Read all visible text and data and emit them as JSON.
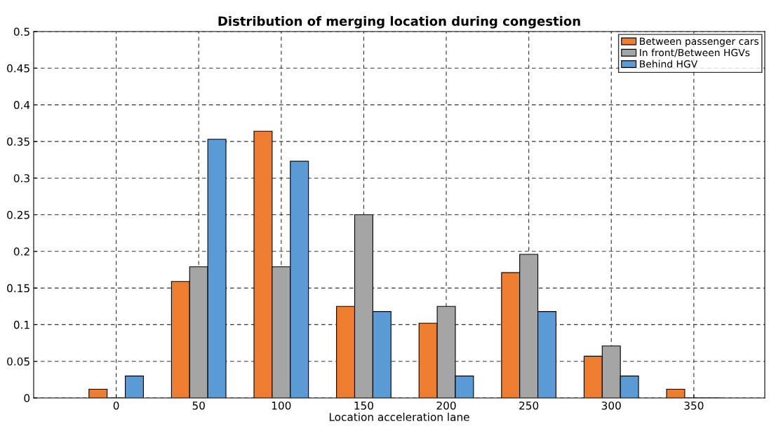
{
  "chart_data": {
    "type": "bar",
    "title": "Distribution of merging location during congestion",
    "xlabel": "Location acceleration lane",
    "x": [
      0,
      50,
      100,
      150,
      200,
      250,
      300,
      350
    ],
    "series": [
      {
        "name": "Between passenger cars",
        "color": "#ed7d31",
        "values": [
          0.012,
          0.159,
          0.364,
          0.125,
          0.102,
          0.171,
          0.057,
          0.012
        ]
      },
      {
        "name": "In front/Between HGVs",
        "color": "#a5a5a5",
        "values": [
          0,
          0.179,
          0.179,
          0.25,
          0.125,
          0.196,
          0.071,
          0
        ]
      },
      {
        "name": "Behind HGV",
        "color": "#5b9bd5",
        "values": [
          0.03,
          0.353,
          0.323,
          0.118,
          0.03,
          0.118,
          0.03,
          0
        ]
      }
    ],
    "xlim": [
      -50,
      393
    ],
    "xticks": [
      0,
      50,
      100,
      150,
      200,
      250,
      300,
      350
    ],
    "ylim": [
      0,
      0.5
    ],
    "yticks": [
      0,
      0.05,
      0.1,
      0.15,
      0.2,
      0.25,
      0.3,
      0.35,
      0.4,
      0.45,
      0.5
    ],
    "grid": true,
    "legend": "top right"
  }
}
